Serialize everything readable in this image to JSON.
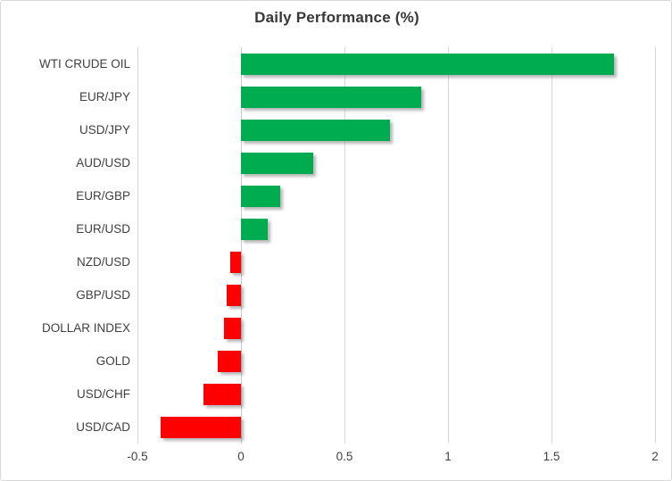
{
  "window": {
    "background": "#FFFFFF",
    "border_color": "#D8D8D8"
  },
  "chart_data": {
    "type": "bar",
    "orientation": "horizontal",
    "title": "Daily Performance (%)",
    "categories": [
      "WTI CRUDE OIL",
      "EUR/JPY",
      "USD/JPY",
      "AUD/USD",
      "EUR/GBP",
      "EUR/USD",
      "NZD/USD",
      "GBP/USD",
      "DOLLAR INDEX",
      "GOLD",
      "USD/CHF",
      "USD/CAD"
    ],
    "values": [
      1.8,
      0.87,
      0.72,
      0.35,
      0.19,
      0.13,
      -0.05,
      -0.07,
      -0.08,
      -0.11,
      -0.18,
      -0.39
    ],
    "xlabel": "",
    "ylabel": "",
    "xlim": [
      -0.5,
      2
    ],
    "x_ticks": [
      -0.5,
      0,
      0.5,
      1,
      1.5,
      2
    ],
    "x_tick_labels": [
      "-0.5",
      "0",
      "0.5",
      "1",
      "1.5",
      "2"
    ],
    "grid": "vertical-only",
    "legend": "none",
    "colors": {
      "positive_bar": "#00AC50",
      "negative_bar": "#FF0000",
      "gridline": "#D6D6D6",
      "zero_axis": "#C9C9C9",
      "title_text": "#383838",
      "category_text": "#3F3F3F",
      "tick_text": "#404040"
    }
  }
}
